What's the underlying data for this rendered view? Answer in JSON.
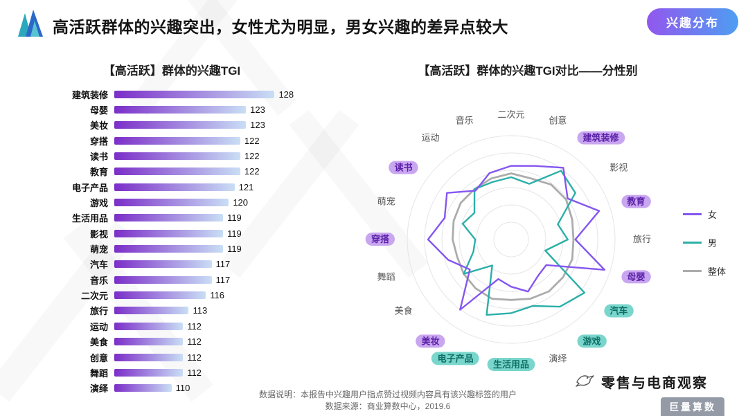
{
  "header": {
    "title": "高活跃群体的兴趣突出，女性尤为明显，男女兴趣的差异点较大",
    "badge": "兴趣分布"
  },
  "chart_data": [
    {
      "type": "bar",
      "orientation": "horizontal",
      "title": "【高活跃】群体的兴趣TGI",
      "categories": [
        "建筑装修",
        "母婴",
        "美妆",
        "穿搭",
        "读书",
        "教育",
        "电子产品",
        "游戏",
        "生活用品",
        "影视",
        "萌宠",
        "汽车",
        "音乐",
        "二次元",
        "旅行",
        "运动",
        "美食",
        "创意",
        "舞蹈",
        "演绎"
      ],
      "values": [
        128,
        123,
        123,
        122,
        122,
        122,
        121,
        120,
        119,
        119,
        119,
        117,
        117,
        116,
        113,
        112,
        112,
        112,
        112,
        110
      ],
      "xlim": [
        100,
        130
      ],
      "bar_gradient": [
        "#7B2EC8",
        "#C9DEF5"
      ]
    },
    {
      "type": "radar",
      "title": "【高活跃】群体的兴趣TGI对比——分性别",
      "categories": [
        "二次元",
        "创意",
        "建筑装修",
        "影视",
        "教育",
        "旅行",
        "母婴",
        "汽车",
        "游戏",
        "演绎",
        "生活用品",
        "电子产品",
        "美妆",
        "美食",
        "舞蹈",
        "穿搭",
        "萌宠",
        "读书",
        "运动",
        "音乐"
      ],
      "series": [
        {
          "name": "女",
          "color": "#8456F0",
          "values": [
            119,
            121,
            127,
            117,
            129,
            114,
            132,
            103,
            104,
            109,
            105,
            102,
            126,
            107,
            115,
            124,
            117,
            122,
            112,
            117
          ]
        },
        {
          "name": "男",
          "color": "#2BAFA8",
          "values": [
            113,
            111,
            125,
            122,
            106,
            110,
            99,
            128,
            124,
            117,
            119,
            122,
            97,
            111,
            101,
            99,
            107,
            104,
            113,
            112
          ]
        },
        {
          "name": "整体",
          "color": "#ACACAC",
          "values": [
            115,
            114,
            116,
            116,
            114,
            113,
            114,
            114,
            114,
            113,
            112,
            113,
            112,
            111,
            110,
            111,
            112,
            113,
            113,
            114
          ]
        }
      ],
      "range": [
        80,
        135
      ],
      "rings": 6,
      "grid": true,
      "legend_position": "right",
      "highlights": {
        "purple": [
          "建筑装修",
          "教育",
          "母婴",
          "美妆",
          "穿搭",
          "读书"
        ],
        "teal": [
          "汽车",
          "游戏",
          "生活用品",
          "电子产品"
        ]
      },
      "highlight_colors": {
        "purple_bg": "#C9A6F0",
        "purple_text": "#5B21A8",
        "teal_bg": "#7AD6CC",
        "teal_text": "#0E6F66"
      }
    }
  ],
  "footer": {
    "note": "数据说明：本报告中兴趣用户指点赞过视频内容具有该兴趣标签的用户",
    "source": "数据来源：商业算数中心，2019.6"
  },
  "branding": {
    "wechat": "零售与电商观察",
    "logo": "巨量算数"
  }
}
